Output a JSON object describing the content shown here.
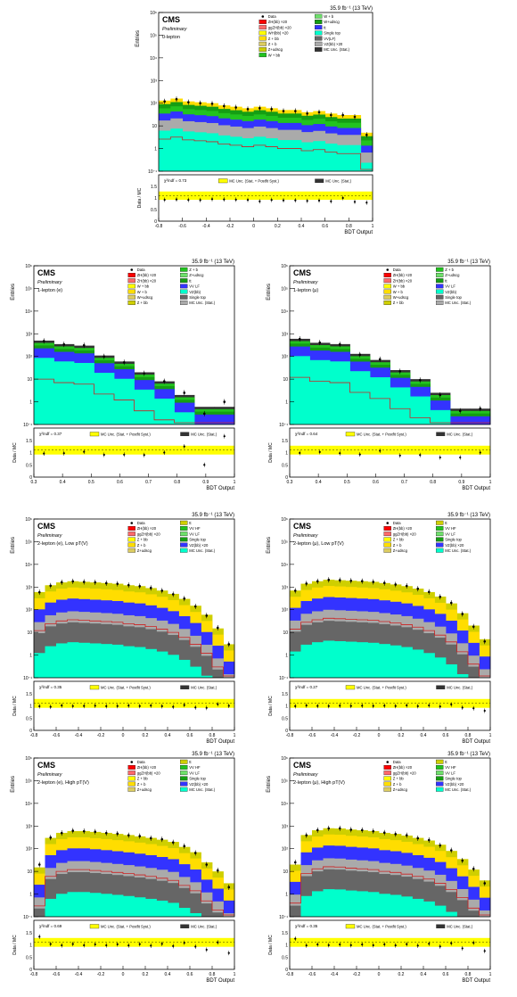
{
  "chart_data": [
    {
      "type": "area",
      "lumi": "35.9 fb⁻¹ (13 TeV)",
      "cms": "CMS",
      "prelim": "Preliminary",
      "region": "0-lepton",
      "ylabel": "Entries",
      "xlabel": "BDT Output",
      "ratio_label": "Data / MC",
      "chi2": "χ²/ndf = 0.73",
      "xlim": [
        -0.8,
        1.0
      ],
      "xticks": [
        "-0.8",
        "-0.6",
        "-0.4",
        "-0.2",
        "0",
        "0.2",
        "0.4",
        "0.6",
        "0.8",
        "1"
      ],
      "yticks": [
        "10⁻¹",
        "1",
        "10",
        "10²",
        "10³",
        "10⁴",
        "10⁵",
        "10⁶"
      ],
      "ratio_ticks": [
        "0",
        "0.5",
        "1",
        "1.5"
      ],
      "legend": [
        "Data",
        "ZH(bb) ×20",
        "ggZH(bb) ×20",
        "WH(bb) ×20",
        "Z + bb",
        "Z + b",
        "Z+udscg",
        "W + bb",
        "W + b",
        "W+udscg",
        "tt",
        "Single top",
        "VV(LF)",
        "VZ(bb) ×20",
        "MC Unc. (Stat.)"
      ],
      "ratio_legend": [
        "MC Unc. (Stat. + Postfit Syst.)",
        "MC Unc. (Stat.)"
      ],
      "bins": 18,
      "stack_tops": [
        130,
        160,
        120,
        110,
        100,
        80,
        70,
        60,
        70,
        60,
        50,
        50,
        40,
        45,
        35,
        30,
        30,
        5
      ],
      "data": [
        120,
        150,
        110,
        100,
        95,
        75,
        65,
        55,
        60,
        55,
        45,
        45,
        35,
        40,
        30,
        30,
        25,
        4
      ]
    },
    {
      "type": "area",
      "lumi": "35.9 fb⁻¹ (13 TeV)",
      "cms": "CMS",
      "prelim": "Preliminary",
      "region": "1-lepton (e)",
      "ylabel": "Entries",
      "xlabel": "BDT Output",
      "ratio_label": "Data / MC",
      "chi2": "χ²/ndf = 0.37",
      "xlim": [
        0.3,
        1.0
      ],
      "xticks": [
        "0.3",
        "0.4",
        "0.5",
        "0.6",
        "0.7",
        "0.8",
        "0.9",
        "1"
      ],
      "yticks": [
        "10⁻¹",
        "1",
        "10",
        "10²",
        "10³",
        "10⁴",
        "10⁵",
        "10⁶"
      ],
      "ratio_ticks": [
        "0",
        "0.5",
        "1",
        "1.5"
      ],
      "legend": [
        "Data",
        "ZH(bb) ×20",
        "ZH(bb) ×20",
        "W + bb",
        "W + b",
        "W+udscg",
        "Z + bb",
        "Z + b",
        "Z+udscg",
        "tt",
        "VV LF",
        "VZ(bb)",
        "Single top",
        "MC Unc. (Stat.)"
      ],
      "ratio_legend": [
        "MC Unc. (Stat. + Postfit Syst.)",
        "MC Unc. (Stat.)"
      ],
      "bins": 10,
      "stack_tops": [
        500,
        350,
        300,
        110,
        60,
        20,
        8,
        2,
        0.6,
        0.6
      ],
      "data": [
        480,
        340,
        310,
        100,
        55,
        18,
        8,
        2.5,
        0.3,
        1
      ]
    },
    {
      "type": "area",
      "lumi": "35.9 fb⁻¹ (13 TeV)",
      "cms": "CMS",
      "prelim": "Preliminary",
      "region": "1-lepton (μ)",
      "ylabel": "Entries",
      "xlabel": "BDT Output",
      "ratio_label": "Data / MC",
      "chi2": "χ²/ndf = 0.64",
      "xlim": [
        0.3,
        1.0
      ],
      "xticks": [
        "0.3",
        "0.4",
        "0.5",
        "0.6",
        "0.7",
        "0.8",
        "0.9",
        "1"
      ],
      "yticks": [
        "10⁻¹",
        "1",
        "10",
        "10²",
        "10³",
        "10⁴",
        "10⁵",
        "10⁶"
      ],
      "ratio_ticks": [
        "0",
        "0.5",
        "1",
        "1.5"
      ],
      "legend": [
        "Data",
        "ZH(bb) ×20",
        "ZH(bb) ×20",
        "W + bb",
        "W + b",
        "W+udscg",
        "Z + bb",
        "Z + b",
        "Z+udscg",
        "tt",
        "VV LF",
        "VZ(bb)",
        "Single top",
        "MC Unc. (Stat.)"
      ],
      "ratio_legend": [
        "MC Unc. (Stat. + Postfit Syst.)",
        "MC Unc. (Stat.)"
      ],
      "bins": 10,
      "stack_tops": [
        600,
        400,
        350,
        130,
        70,
        25,
        10,
        2.5,
        0.5,
        0.5
      ],
      "data": [
        590,
        410,
        340,
        120,
        75,
        22,
        9,
        2,
        0.4,
        0.5
      ]
    },
    {
      "type": "area",
      "lumi": "35.9 fb⁻¹ (13 TeV)",
      "cms": "CMS",
      "prelim": "Preliminary",
      "region": "2-lepton (e), Low pT(V)",
      "ylabel": "Entries",
      "xlabel": "BDT Output",
      "ratio_label": "Data / MC",
      "chi2": "χ²/ndf = 0.35",
      "xlim": [
        -0.8,
        1.0
      ],
      "xticks": [
        "-0.8",
        "-0.6",
        "-0.4",
        "-0.2",
        "0",
        "0.2",
        "0.4",
        "0.6",
        "0.8",
        "1"
      ],
      "yticks": [
        "10⁻¹",
        "1",
        "10",
        "10²",
        "10³",
        "10⁴",
        "10⁵",
        "10⁶"
      ],
      "ratio_ticks": [
        "0",
        "0.5",
        "1",
        "1.5"
      ],
      "legend": [
        "Data",
        "ZH(bb) ×20",
        "ggZH(bb) ×20",
        "Z + bb",
        "Z + b",
        "Z+udscg",
        "tt",
        "VV HF",
        "VV LF",
        "Single top",
        "VZ(bb) ×20",
        "MC Unc. (Stat.)"
      ],
      "ratio_legend": [
        "MC Unc. (Stat. + Postfit Syst.)",
        "MC Unc. (Stat.)"
      ],
      "bins": 18,
      "stack_tops": [
        600,
        1200,
        1600,
        1800,
        1700,
        1600,
        1500,
        1400,
        1200,
        1100,
        900,
        700,
        500,
        300,
        150,
        60,
        15,
        3
      ],
      "data": [
        590,
        1150,
        1620,
        1780,
        1690,
        1610,
        1480,
        1390,
        1210,
        1090,
        910,
        690,
        480,
        310,
        140,
        55,
        16,
        3
      ]
    },
    {
      "type": "area",
      "lumi": "35.9 fb⁻¹ (13 TeV)",
      "cms": "CMS",
      "prelim": "Preliminary",
      "region": "2-lepton (μ), Low pT(V)",
      "ylabel": "Entries",
      "xlabel": "BDT Output",
      "ratio_label": "Data / MC",
      "chi2": "χ²/ndf = 0.27",
      "xlim": [
        -0.8,
        1.0
      ],
      "xticks": [
        "-0.8",
        "-0.6",
        "-0.4",
        "-0.2",
        "0",
        "0.2",
        "0.4",
        "0.6",
        "0.8",
        "1"
      ],
      "yticks": [
        "10⁻¹",
        "1",
        "10",
        "10²",
        "10³",
        "10⁴",
        "10⁵",
        "10⁶"
      ],
      "ratio_ticks": [
        "0",
        "0.5",
        "1",
        "1.5"
      ],
      "legend": [
        "Data",
        "ZH(bb) ×20",
        "ggZH(bb) ×20",
        "Z + bb",
        "Z + b",
        "Z+udscg",
        "tt",
        "VV HF",
        "VV LF",
        "Single top",
        "VZ(bb) ×20",
        "MC Unc. (Stat.)"
      ],
      "ratio_legend": [
        "MC Unc. (Stat. + Postfit Syst.)",
        "MC Unc. (Stat.)"
      ],
      "bins": 18,
      "stack_tops": [
        700,
        1400,
        1800,
        2100,
        2000,
        1900,
        1800,
        1700,
        1500,
        1300,
        1100,
        850,
        600,
        380,
        190,
        70,
        20,
        5
      ],
      "data": [
        690,
        1420,
        1790,
        2080,
        2010,
        1890,
        1810,
        1690,
        1510,
        1290,
        1120,
        840,
        610,
        370,
        200,
        65,
        18,
        4
      ]
    },
    {
      "type": "area",
      "lumi": "35.9 fb⁻¹ (13 TeV)",
      "cms": "CMS",
      "prelim": "Preliminary",
      "region": "2-lepton (e), High pT(V)",
      "ylabel": "Entries",
      "xlabel": "BDT Output",
      "ratio_label": "Data / MC",
      "chi2": "χ²/ndf = 0.69",
      "xlim": [
        -0.8,
        1.0
      ],
      "xticks": [
        "-0.8",
        "-0.6",
        "-0.4",
        "-0.2",
        "0",
        "0.2",
        "0.4",
        "0.6",
        "0.8",
        "1"
      ],
      "yticks": [
        "10⁻¹",
        "1",
        "10",
        "10²",
        "10³",
        "10⁴",
        "10⁵",
        "10⁶"
      ],
      "ratio_ticks": [
        "0",
        "0.5",
        "1",
        "1.5"
      ],
      "legend": [
        "Data",
        "ZH(bb) ×20",
        "ggZH(bb) ×20",
        "Z + bb",
        "Z + b",
        "Z+udscg",
        "tt",
        "VV HF",
        "VV LF",
        "Single top",
        "VZ(bb) ×20",
        "MC Unc. (Stat.)"
      ],
      "ratio_legend": [
        "MC Unc. (Stat. + Postfit Syst.)",
        "MC Unc. (Stat.)"
      ],
      "bins": 18,
      "stack_tops": [
        15,
        300,
        500,
        600,
        600,
        550,
        500,
        450,
        400,
        350,
        300,
        250,
        200,
        120,
        70,
        25,
        10,
        3
      ],
      "data": [
        20,
        310,
        490,
        620,
        590,
        560,
        490,
        460,
        390,
        360,
        290,
        260,
        190,
        130,
        65,
        20,
        11,
        2
      ]
    },
    {
      "type": "area",
      "lumi": "35.9 fb⁻¹ (13 TeV)",
      "cms": "CMS",
      "prelim": "Preliminary",
      "region": "2-lepton (μ), High pT(V)",
      "ylabel": "Entries",
      "xlabel": "BDT Output",
      "ratio_label": "Data / MC",
      "chi2": "χ²/ndf = 0.35",
      "xlim": [
        -0.8,
        1.0
      ],
      "xticks": [
        "-0.8",
        "-0.6",
        "-0.4",
        "-0.2",
        "0",
        "0.2",
        "0.4",
        "0.6",
        "0.8",
        "1"
      ],
      "yticks": [
        "10⁻¹",
        "1",
        "10",
        "10²",
        "10³",
        "10⁴",
        "10⁵",
        "10⁶"
      ],
      "ratio_ticks": [
        "0",
        "0.5",
        "1",
        "1.5"
      ],
      "legend": [
        "Data",
        "ZH(bb) ×20",
        "ggZH(bb) ×20",
        "Z + bb",
        "Z + b",
        "Z+udscg",
        "tt",
        "VV HF",
        "VV LF",
        "Single top",
        "VZ(bb) ×20",
        "MC Unc. (Stat.)"
      ],
      "ratio_legend": [
        "MC Unc. (Stat. + Postfit Syst.)",
        "MC Unc. (Stat.)"
      ],
      "bins": 18,
      "stack_tops": [
        20,
        400,
        650,
        800,
        780,
        700,
        650,
        600,
        500,
        450,
        380,
        300,
        230,
        150,
        80,
        35,
        12,
        4
      ],
      "data": [
        25,
        390,
        660,
        790,
        790,
        690,
        660,
        590,
        510,
        440,
        390,
        290,
        240,
        140,
        85,
        30,
        13,
        3
      ]
    }
  ],
  "colors": {
    "data": "#000000",
    "zh": "#ff0000",
    "ggzh": "#ff6a6a",
    "wh": "#ffff00",
    "zbb": "#ffdd00",
    "zb": "#dccc60",
    "zudscg": "#cfcf00",
    "wbb": "#22c31f",
    "wb": "#6ee06b",
    "wudscg": "#159e13",
    "tt": "#3333ff",
    "stop": "#00ffcc",
    "vvhf": "#aaaaaa",
    "vvlf": "#666666",
    "vzbb": "#888888",
    "unc": "#ffff00",
    "unc_stat": "#333333"
  }
}
